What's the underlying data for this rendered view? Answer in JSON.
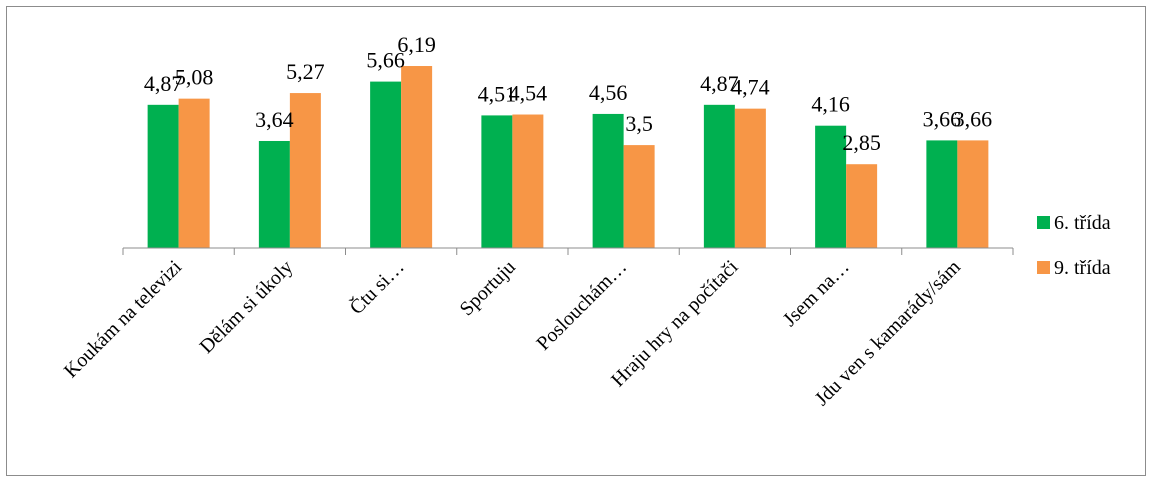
{
  "chart_data": {
    "type": "bar",
    "categories": [
      "Koukám na televizi",
      "Dělám si úkoly",
      "Čtu si…",
      "Sportuju",
      "Poslouchám…",
      "Hraju hry na počítači",
      "Jsem na…",
      "Jdu ven s kamarády/sám"
    ],
    "series": [
      {
        "name": "6. třída",
        "color": "#00B050",
        "values": [
          4.87,
          3.64,
          5.66,
          4.51,
          4.56,
          4.87,
          4.16,
          3.66
        ],
        "labels": [
          "4,87",
          "3,64",
          "5,66",
          "4,51",
          "4,56",
          "4,87",
          "4,16",
          "3,66"
        ]
      },
      {
        "name": "9. třída",
        "color": "#F79646",
        "values": [
          5.08,
          5.27,
          6.19,
          4.54,
          3.5,
          4.74,
          2.85,
          3.66
        ],
        "labels": [
          "5,08",
          "5,27",
          "6,19",
          "4,54",
          "3,5",
          "4,74",
          "2,85",
          "3,66"
        ]
      }
    ],
    "title": "",
    "xlabel": "",
    "ylabel": "",
    "ylim": [
      0,
      6.5
    ],
    "grid": false,
    "legend_position": "right"
  }
}
